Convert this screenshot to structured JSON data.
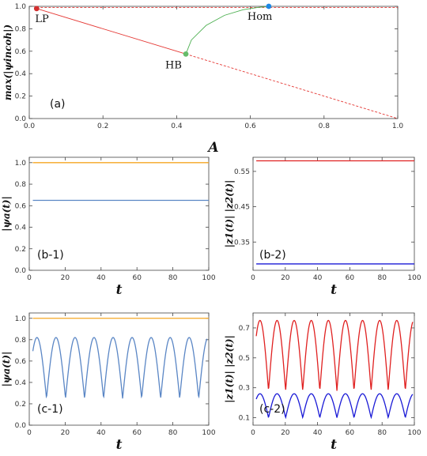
{
  "chart_data": [
    {
      "id": "a",
      "type": "line",
      "panel_label": "(a)",
      "xlabel": "A",
      "ylabel": "max(|ψincoh|)",
      "xlim": [
        0,
        1
      ],
      "ylim": [
        0,
        1
      ],
      "xticks": [
        "0.0",
        "0.2",
        "0.4",
        "0.6",
        "0.8",
        "1.0"
      ],
      "yticks": [
        "0.0",
        "0.2",
        "0.4",
        "0.6",
        "0.8",
        "1.0"
      ],
      "series": [
        {
          "style": "solid",
          "color": "#e53935",
          "x": [
            0.02,
            0.425
          ],
          "y": [
            0.98,
            0.575
          ]
        },
        {
          "style": "dashed",
          "color": "#e53935",
          "x": [
            0.425,
            1.0
          ],
          "y": [
            0.575,
            0.0
          ]
        },
        {
          "style": "dashed",
          "color": "#e53935",
          "x": [
            0.02,
            1.0
          ],
          "y": [
            0.99,
            0.99
          ]
        },
        {
          "style": "solid",
          "color": "#4caf50",
          "x": [
            0.425,
            0.44,
            0.48,
            0.53,
            0.58,
            0.62,
            0.65
          ],
          "y": [
            0.575,
            0.7,
            0.83,
            0.92,
            0.97,
            0.99,
            1.0
          ]
        }
      ],
      "points": [
        {
          "label": "LP",
          "x": 0.02,
          "y": 0.98,
          "color": "#d32f2f"
        },
        {
          "label": "HB",
          "x": 0.425,
          "y": 0.575,
          "color": "#66bb6a"
        },
        {
          "label": "Hom",
          "x": 0.65,
          "y": 1.0,
          "color": "#1e88e5"
        }
      ]
    },
    {
      "id": "b1",
      "type": "line",
      "panel_label": "(b-1)",
      "xlabel": "t",
      "ylabel": "|ψa(t)|",
      "xlim": [
        0,
        100
      ],
      "ylim": [
        0,
        1.05
      ],
      "xticks": [
        "0",
        "20",
        "40",
        "60",
        "80",
        "100"
      ],
      "yticks": [
        "0.0",
        "0.2",
        "0.4",
        "0.6",
        "0.8",
        "1.0"
      ],
      "series": [
        {
          "color": "#f5a623",
          "kind": "constant",
          "x": [
            2,
            100
          ],
          "y": [
            1.0,
            1.0
          ]
        },
        {
          "color": "#5a86c5",
          "kind": "constant",
          "x": [
            2,
            100
          ],
          "y": [
            0.65,
            0.65
          ]
        }
      ]
    },
    {
      "id": "b2",
      "type": "line",
      "panel_label": "(b-2)",
      "xlabel": "t",
      "ylabel": "|z1(t)|    |z2(t)|",
      "xlim": [
        0,
        100
      ],
      "ylim": [
        0.27,
        0.59
      ],
      "xticks": [
        "0",
        "20",
        "40",
        "60",
        "80",
        "100"
      ],
      "yticks": [
        "0.35",
        "0.45",
        "0.55"
      ],
      "ytick_values": [
        0.35,
        0.45,
        0.55
      ],
      "series": [
        {
          "color": "#e02020",
          "kind": "constant",
          "x": [
            2,
            100
          ],
          "y": [
            0.58,
            0.58
          ]
        },
        {
          "color": "#1a1ad6",
          "kind": "constant",
          "x": [
            2,
            100
          ],
          "y": [
            0.288,
            0.288
          ]
        }
      ]
    },
    {
      "id": "c1",
      "type": "line",
      "panel_label": "(c-1)",
      "xlabel": "t",
      "ylabel": "|ψa(t)|",
      "xlim": [
        0,
        100
      ],
      "ylim": [
        0,
        1.05
      ],
      "xticks": [
        "0",
        "20",
        "40",
        "60",
        "80",
        "100"
      ],
      "yticks": [
        "0.0",
        "0.2",
        "0.4",
        "0.6",
        "0.8",
        "1.0"
      ],
      "series": [
        {
          "color": "#f5a623",
          "kind": "constant",
          "x": [
            2,
            100
          ],
          "y": [
            1.0,
            1.0
          ]
        },
        {
          "color": "#5a86c5",
          "kind": "oscillation",
          "period": 10.6,
          "phase": 4.3,
          "min": 0.25,
          "max": 0.82,
          "x_range": [
            2,
            99
          ]
        }
      ]
    },
    {
      "id": "c2",
      "type": "line",
      "panel_label": "(c-2)",
      "xlabel": "t",
      "ylabel": "|z1(t)|    |z2(t)|",
      "xlim": [
        0,
        100
      ],
      "ylim": [
        0.05,
        0.8
      ],
      "xticks": [
        "0",
        "20",
        "40",
        "60",
        "80",
        "100"
      ],
      "yticks": [
        "0.1",
        "0.3",
        "0.5",
        "0.7"
      ],
      "ytick_values": [
        0.1,
        0.3,
        0.5,
        0.7
      ],
      "series": [
        {
          "color": "#e02020",
          "kind": "oscillation",
          "period": 10.6,
          "phase": 4.3,
          "min": 0.28,
          "max": 0.75,
          "x_range": [
            2,
            99
          ]
        },
        {
          "color": "#1a1ad6",
          "kind": "oscillation",
          "period": 10.6,
          "phase": 4.3,
          "min": 0.1,
          "max": 0.26,
          "x_range": [
            2,
            99
          ]
        }
      ]
    }
  ]
}
